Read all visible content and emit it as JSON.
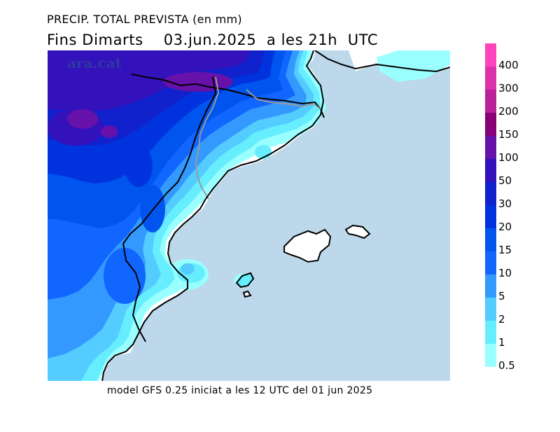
{
  "title": "PRECIP. TOTAL PREVISTA (en mm)",
  "subtitle": "Fins Dimarts    03.jun.2025  a les 21h  UTC",
  "footer": "model GFS 0.25 iniciat a les 12 UTC del 01 jun 2025",
  "watermark": "ara.cat",
  "legend": {
    "levels": [
      {
        "label": "400",
        "color": "#ff44bb"
      },
      {
        "label": "300",
        "color": "#dd33aa"
      },
      {
        "label": "200",
        "color": "#bb2299"
      },
      {
        "label": "150",
        "color": "#880077"
      },
      {
        "label": "100",
        "color": "#6611aa"
      },
      {
        "label": "50",
        "color": "#3311bb"
      },
      {
        "label": "30",
        "color": "#1122cc"
      },
      {
        "label": "20",
        "color": "#0033dd"
      },
      {
        "label": "15",
        "color": "#0055ee"
      },
      {
        "label": "10",
        "color": "#1166ff"
      },
      {
        "label": "5",
        "color": "#3399ff"
      },
      {
        "label": "2",
        "color": "#55ccff"
      },
      {
        "label": "1",
        "color": "#66eeff"
      },
      {
        "label": "0.5",
        "color": "#99ffff"
      }
    ]
  },
  "colors": {
    "sea": "#bcd8ea",
    "land_no_rain": "#ffffff",
    "coastline": "#000000",
    "border": "#999999"
  }
}
